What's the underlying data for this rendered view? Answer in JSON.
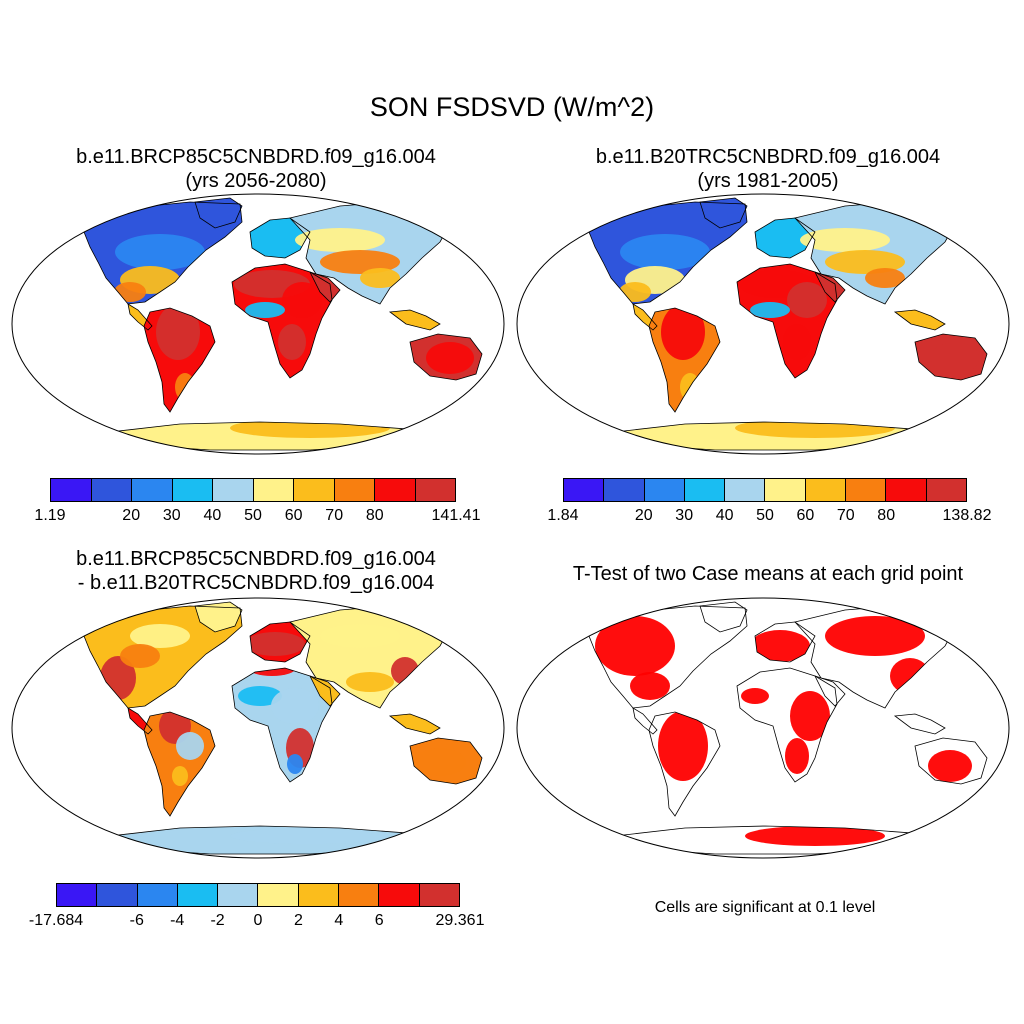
{
  "title": "SON FSDSVD (W/m^2)",
  "palette": [
    "#3a17f5",
    "#2f55dc",
    "#2b86f0",
    "#1abdf2",
    "#a9d5ee",
    "#fff28a",
    "#fbbd1c",
    "#f87f10",
    "#f70b0b",
    "#d2302e"
  ],
  "significance_color": "#ff0000",
  "land_colors": {
    "ocean": "#ffffff",
    "outline": "#000000"
  },
  "panels": [
    {
      "id": "case1",
      "title_line1": "b.e11.BRCP85C5CNBDRD.f09_g16.004",
      "title_line2": "(yrs 2056-2080)",
      "colorbar": {
        "min_label": "1.19",
        "max_label": "141.41",
        "tick_labels": [
          "20",
          "30",
          "40",
          "50",
          "60",
          "70",
          "80"
        ]
      }
    },
    {
      "id": "case2",
      "title_line1": "b.e11.B20TRC5CNBDRD.f09_g16.004",
      "title_line2": "(yrs 1981-2005)",
      "colorbar": {
        "min_label": "1.84",
        "max_label": "138.82",
        "tick_labels": [
          "20",
          "30",
          "40",
          "50",
          "60",
          "70",
          "80"
        ]
      }
    },
    {
      "id": "difference",
      "title_line1": "b.e11.BRCP85C5CNBDRD.f09_g16.004",
      "title_line2": "- b.e11.B20TRC5CNBDRD.f09_g16.004",
      "colorbar": {
        "min_label": "-17.684",
        "max_label": "29.361",
        "tick_labels": [
          "-6",
          "-4",
          "-2",
          "0",
          "2",
          "4",
          "6"
        ]
      }
    },
    {
      "id": "ttest",
      "title_line1": "T-Test of two Case means at each grid point",
      "note": "Cells are significant at 0.1 level"
    }
  ]
}
